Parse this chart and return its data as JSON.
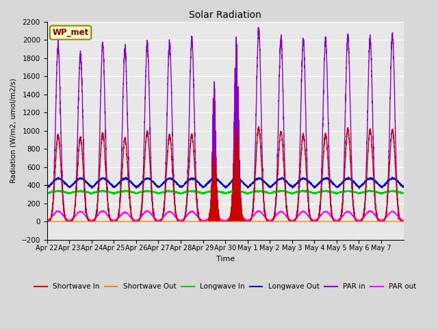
{
  "title": "Solar Radiation",
  "ylabel": "Radiation (W/m2, umol/m2/s)",
  "xlabel": "Time",
  "ylim": [
    -200,
    2200
  ],
  "yticks": [
    -200,
    0,
    200,
    400,
    600,
    800,
    1000,
    1200,
    1400,
    1600,
    1800,
    2000,
    2200
  ],
  "fig_bg_color": "#d8d8d8",
  "plot_bg_color": "#e8e8e8",
  "label_box_text": "WP_met",
  "label_box_facecolor": "#ffffcc",
  "label_box_edgecolor": "#888800",
  "series": {
    "shortwave_in": {
      "color": "#cc0000",
      "label": "Shortwave In",
      "lw": 1.0
    },
    "shortwave_out": {
      "color": "#ff8800",
      "label": "Shortwave Out",
      "lw": 1.0
    },
    "longwave_in": {
      "color": "#00cc00",
      "label": "Longwave In",
      "lw": 1.0
    },
    "longwave_out": {
      "color": "#0000cc",
      "label": "Longwave Out",
      "lw": 1.0
    },
    "par_in": {
      "color": "#8800cc",
      "label": "PAR in",
      "lw": 1.0
    },
    "par_out": {
      "color": "#ff00ff",
      "label": "PAR out",
      "lw": 1.0
    }
  },
  "n_days": 16,
  "points_per_day": 288,
  "tick_labels": [
    "Apr 22",
    "Apr 23",
    "Apr 24",
    "Apr 25",
    "Apr 26",
    "Apr 27",
    "Apr 28",
    "Apr 29",
    "Apr 30",
    "May 1",
    "May 2",
    "May 3",
    "May 4",
    "May 5",
    "May 6",
    "May 7"
  ]
}
